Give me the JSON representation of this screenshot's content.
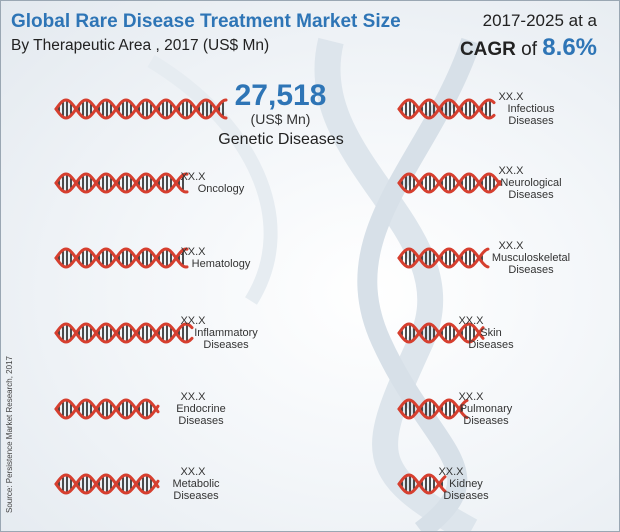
{
  "title": "Global Rare Disease Treatment Market Size",
  "subtitle": "By Therapeutic Area , 2017 (US$ Mn)",
  "period": "2017-2025 at a",
  "cagr_word": "CAGR",
  "cagr_of": " of ",
  "cagr_value": "8.6%",
  "source": "Source: Persistence Market Research, 2017",
  "colors": {
    "accent": "#2e75b6",
    "dna": "#d63f2f",
    "rung": "#222222"
  },
  "chart_data": {
    "type": "bar",
    "title": "Global Rare Disease Treatment Market Size",
    "subtitle": "By Therapeutic Area , 2017 (US$ Mn)",
    "unit": "(US$ Mn)",
    "highlight": {
      "category": "Genetic Diseases",
      "value": 27518,
      "value_label": "27,518",
      "unit_label": "(US$ Mn)"
    },
    "series": [
      {
        "category": "Genetic Diseases",
        "value_label": "27,518",
        "label_lines": [
          "Genetic Diseases"
        ],
        "length": 1.0
      },
      {
        "category": "Oncology",
        "value_label": "XX.X",
        "label_lines": [
          "Oncology"
        ],
        "length": 0.77
      },
      {
        "category": "Hematology",
        "value_label": "XX.X",
        "label_lines": [
          "Hematology"
        ],
        "length": 0.77
      },
      {
        "category": "Inflammatory Diseases",
        "value_label": "XX.X",
        "label_lines": [
          "Inflammatory",
          "Diseases"
        ],
        "length": 0.8
      },
      {
        "category": "Endocrine Diseases",
        "value_label": "XX.X",
        "label_lines": [
          "Endocrine",
          "Diseases"
        ],
        "length": 0.6
      },
      {
        "category": "Metabolic Diseases",
        "value_label": "XX.X",
        "label_lines": [
          "Metabolic",
          "Diseases"
        ],
        "length": 0.6
      },
      {
        "category": "Infectious Diseases",
        "value_label": "XX.X",
        "label_lines": [
          "Infectious",
          "Diseases"
        ],
        "length": 0.5
      },
      {
        "category": "Neurological Diseases",
        "value_label": "XX.X",
        "label_lines": [
          "Neurological",
          "Diseases"
        ],
        "length": 0.53
      },
      {
        "category": "Musculoskeletal Diseases",
        "value_label": "XX.X",
        "label_lines": [
          "Musculoskeletal",
          "Diseases"
        ],
        "length": 0.47
      },
      {
        "category": "Skin Diseases",
        "value_label": "XX.X",
        "label_lines": [
          "Skin",
          "Diseases"
        ],
        "length": 0.44
      },
      {
        "category": "Pulmonary Diseases",
        "value_label": "XX.X",
        "label_lines": [
          "Pulmonary",
          "Diseases"
        ],
        "length": 0.36
      },
      {
        "category": "Kidney Diseases",
        "value_label": "XX.X",
        "label_lines": [
          "Kidney",
          "Diseases"
        ],
        "length": 0.24
      }
    ]
  }
}
